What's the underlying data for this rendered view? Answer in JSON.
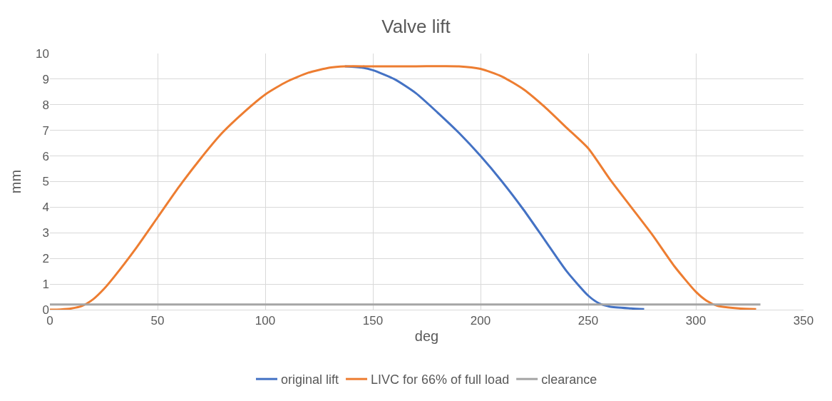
{
  "chart_data": {
    "type": "line",
    "title": "Valve lift",
    "xlabel": "deg",
    "ylabel": "mm",
    "xlim": [
      0,
      350
    ],
    "xticks": [
      0,
      50,
      100,
      150,
      200,
      250,
      300,
      350
    ],
    "ylim": [
      0,
      10
    ],
    "yticks": [
      0,
      1,
      2,
      3,
      4,
      5,
      6,
      7,
      8,
      9,
      10
    ],
    "grid": true,
    "legend": "bottom",
    "marker": "none",
    "line_style": "solid",
    "series": [
      {
        "name": "original lift",
        "color": "#4472c4",
        "x": [
          137,
          145,
          150,
          160,
          170,
          180,
          190,
          200,
          210,
          220,
          230,
          240,
          250,
          255,
          260,
          270,
          276
        ],
        "values": [
          9.5,
          9.45,
          9.35,
          9.0,
          8.45,
          7.7,
          6.9,
          6.0,
          5.0,
          3.9,
          2.7,
          1.5,
          0.55,
          0.25,
          0.12,
          0.05,
          0.02
        ]
      },
      {
        "name": "LIVC for 66% of full load",
        "color": "#ed7d31",
        "x": [
          0,
          5,
          10,
          15,
          20,
          25,
          30,
          40,
          50,
          60,
          70,
          80,
          90,
          100,
          110,
          120,
          130,
          137,
          150,
          170,
          190,
          200,
          210,
          220,
          230,
          240,
          250,
          260,
          270,
          280,
          290,
          300,
          305,
          310,
          320,
          328
        ],
        "values": [
          0,
          0.01,
          0.05,
          0.15,
          0.4,
          0.8,
          1.3,
          2.4,
          3.6,
          4.8,
          5.9,
          6.9,
          7.7,
          8.4,
          8.9,
          9.25,
          9.45,
          9.5,
          9.5,
          9.5,
          9.5,
          9.4,
          9.1,
          8.6,
          7.9,
          7.1,
          6.3,
          5.1,
          4.0,
          2.9,
          1.7,
          0.7,
          0.35,
          0.15,
          0.05,
          0.02
        ]
      },
      {
        "name": "clearance",
        "color": "#a5a5a5",
        "x": [
          0,
          330
        ],
        "values": [
          0.2,
          0.2
        ]
      }
    ]
  }
}
